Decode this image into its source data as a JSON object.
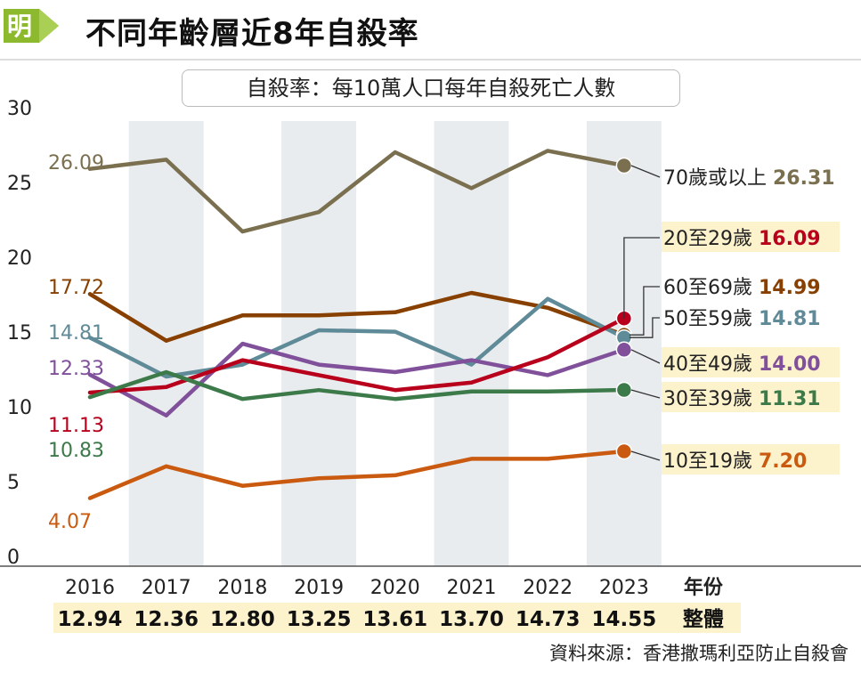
{
  "header": {
    "logo_text": "明",
    "title": "不同年齡層近8年自殺率",
    "subtitle": "自殺率：每10萬人口每年自殺死亡人數",
    "source": "資料來源：香港撒瑪利亞防止自殺會"
  },
  "chart_data": {
    "type": "line",
    "title": "不同年齡層近8年自殺率",
    "subtitle": "自殺率：每10萬人口每年自殺死亡人數",
    "x": [
      "2016",
      "2017",
      "2018",
      "2019",
      "2020",
      "2021",
      "2022",
      "2023"
    ],
    "x_label": "年份",
    "ylim": [
      0,
      30
    ],
    "y_ticks": [
      0,
      5,
      10,
      15,
      20,
      25,
      30
    ],
    "grid": false,
    "overall": {
      "label": "整體",
      "values": [
        "12.94",
        "12.36",
        "12.80",
        "13.25",
        "13.61",
        "13.70",
        "14.73",
        "14.55"
      ]
    },
    "series": [
      {
        "name": "70歲或以上",
        "color": "#7a7050",
        "values": [
          26.09,
          26.7,
          21.9,
          23.2,
          27.2,
          24.8,
          27.3,
          26.31
        ],
        "first_label": "26.09",
        "last_label": "26.31"
      },
      {
        "name": "60至69歲",
        "color": "#874000",
        "values": [
          17.72,
          14.6,
          16.3,
          16.3,
          16.5,
          17.8,
          16.8,
          14.99
        ],
        "first_label": "17.72",
        "last_label": "14.99"
      },
      {
        "name": "50至59歲",
        "color": "#5f8a98",
        "values": [
          14.81,
          12.2,
          13.0,
          15.3,
          15.2,
          13.0,
          17.4,
          14.81
        ],
        "first_label": "14.81",
        "last_label": "14.81"
      },
      {
        "name": "40至49歲",
        "color": "#80509a",
        "values": [
          12.33,
          9.6,
          14.4,
          13.0,
          12.5,
          13.3,
          12.3,
          14.0
        ],
        "first_label": "12.33",
        "last_label": "14.00"
      },
      {
        "name": "20至29歲",
        "color": "#b8001c",
        "values": [
          11.13,
          11.5,
          13.3,
          12.3,
          11.3,
          11.8,
          13.5,
          16.09
        ],
        "first_label": "11.13",
        "last_label": "16.09"
      },
      {
        "name": "30至39歲",
        "color": "#3d7a4a",
        "values": [
          10.83,
          12.5,
          10.7,
          11.3,
          10.7,
          11.2,
          11.2,
          11.31
        ],
        "first_label": "10.83",
        "last_label": "11.31"
      },
      {
        "name": "10至19歲",
        "color": "#c95a10",
        "values": [
          4.07,
          6.2,
          4.9,
          5.4,
          5.6,
          6.7,
          6.7,
          7.2
        ],
        "first_label": "4.07",
        "last_label": "7.20"
      }
    ],
    "text_color": "#222222",
    "band_color": "#e9ecef",
    "highlight_color": "#fcf2cc"
  }
}
